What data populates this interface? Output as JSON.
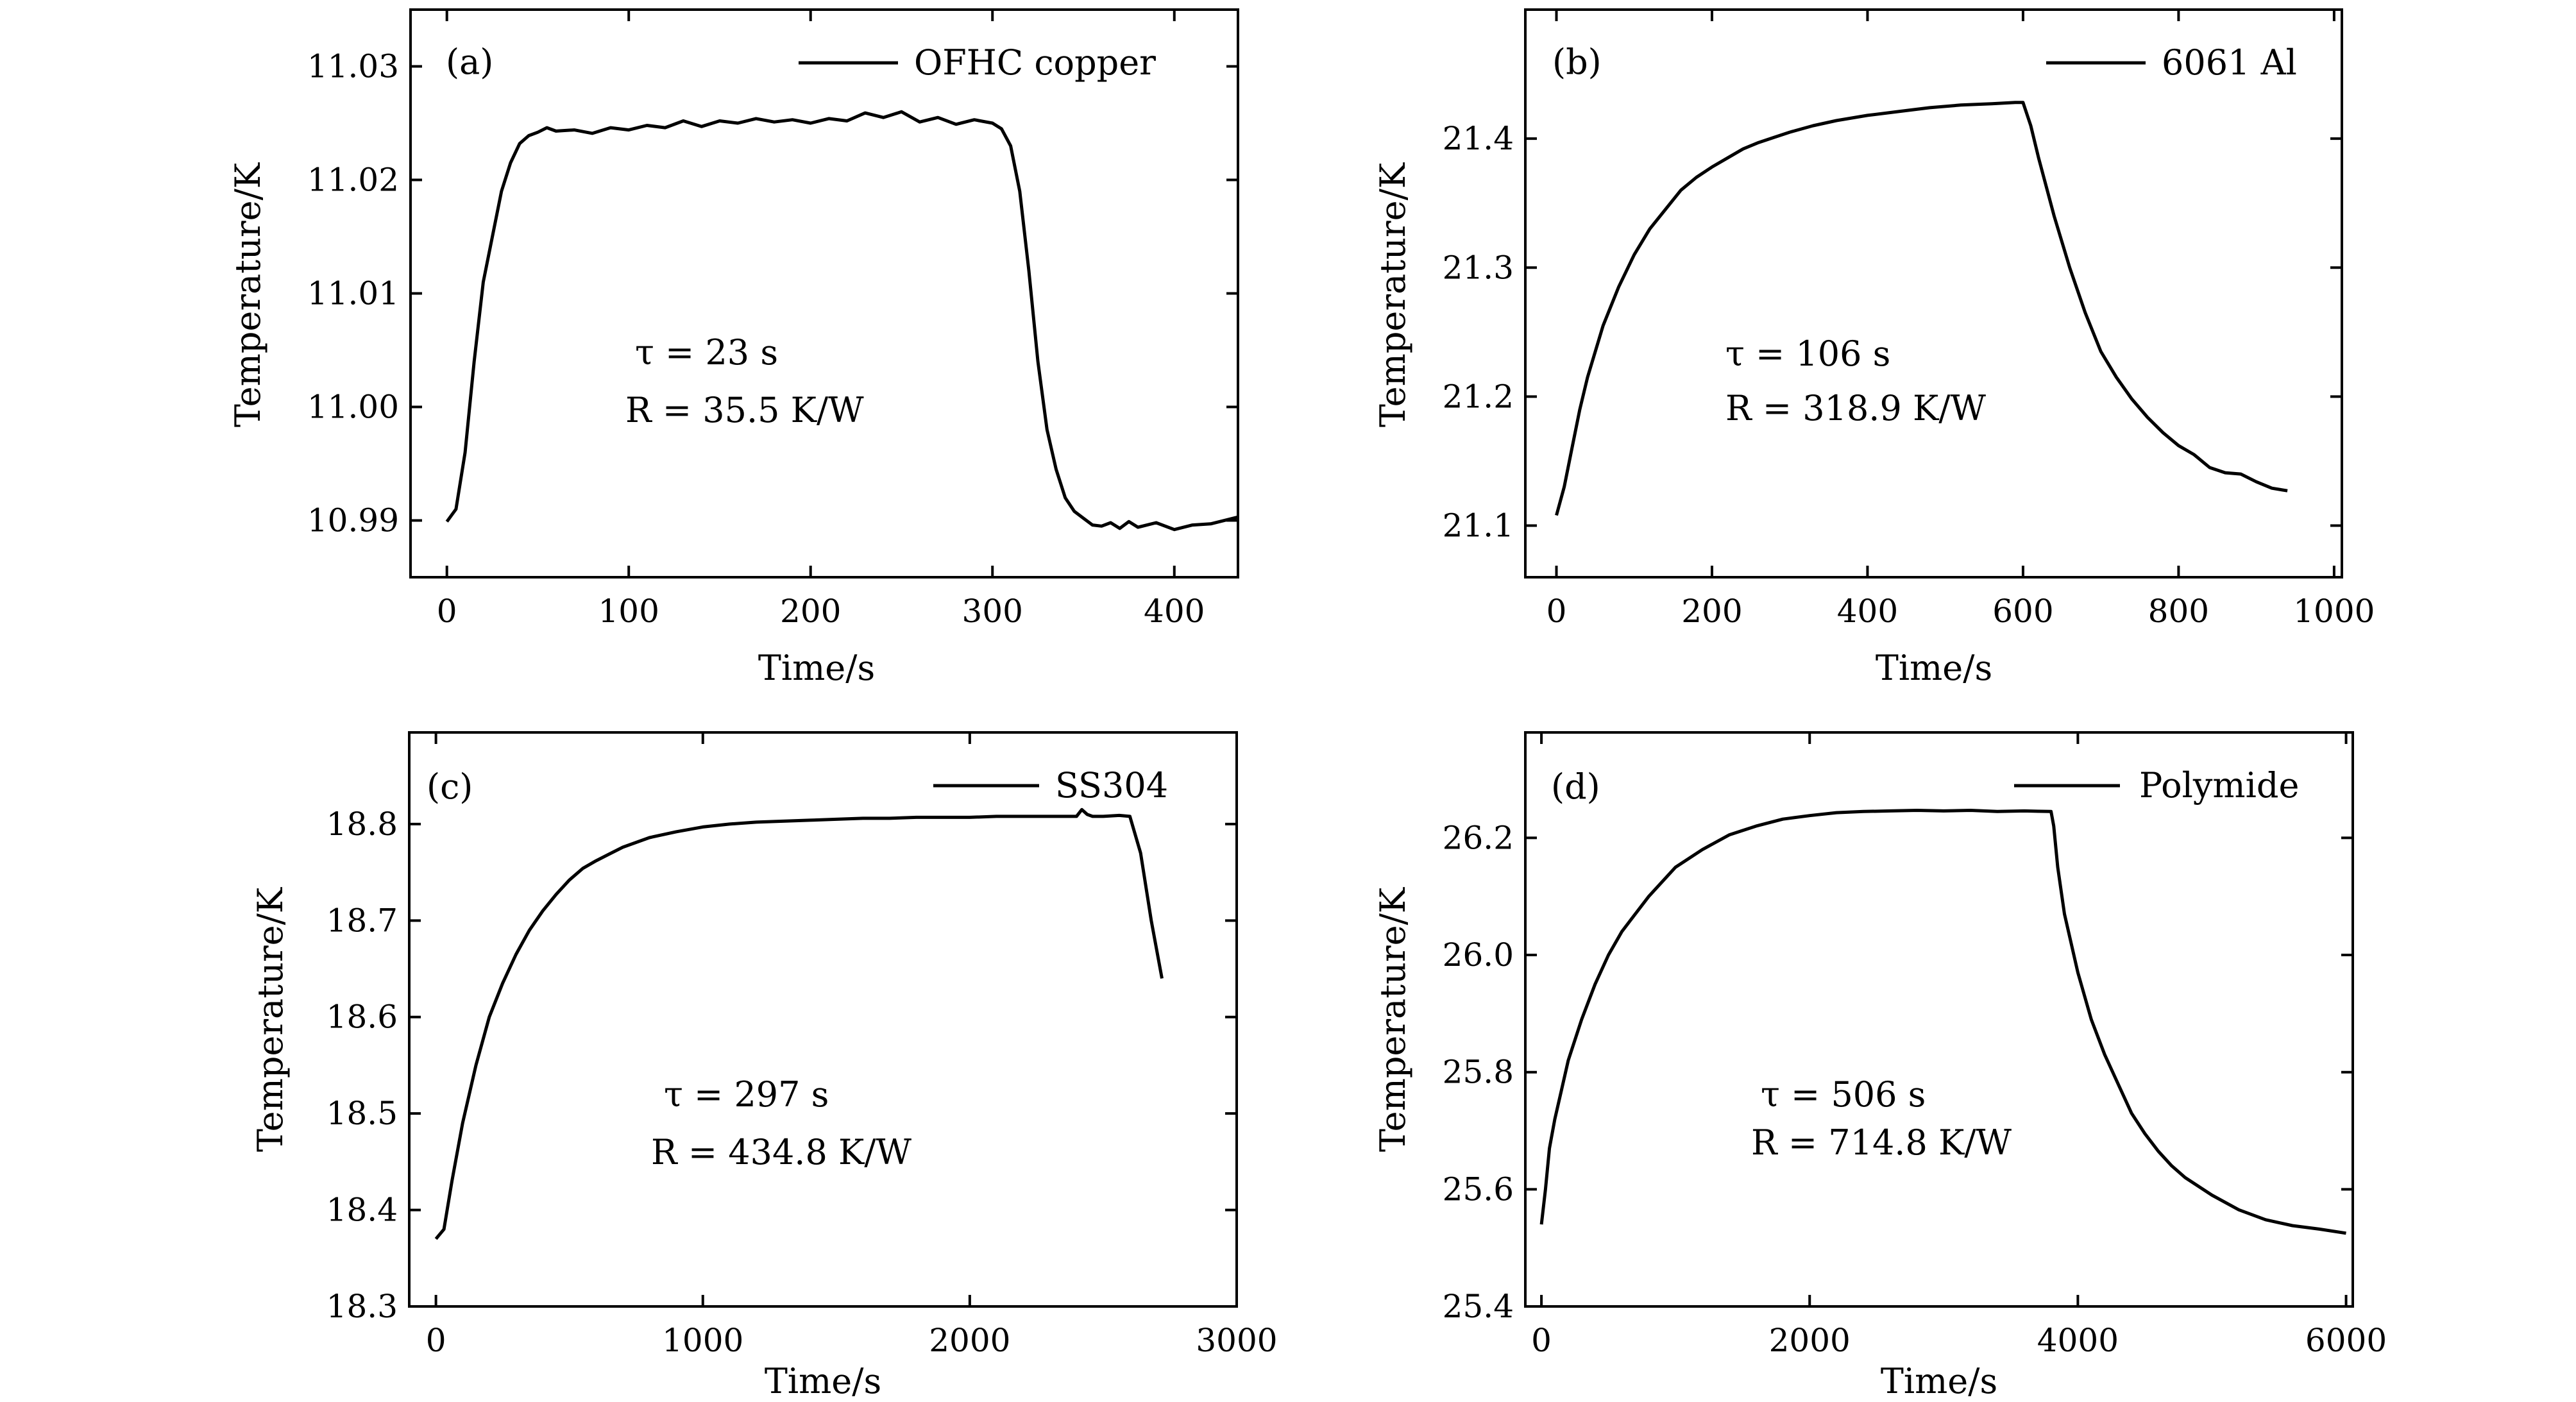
{
  "chart_data": [
    {
      "type": "line",
      "panel_label": "(a)",
      "xlabel": "Time/s",
      "ylabel": "Temperature/K",
      "xlim": [
        -20,
        435
      ],
      "ylim": [
        10.985,
        11.035
      ],
      "xticks": [
        0,
        100,
        200,
        300,
        400
      ],
      "xtick_labels": [
        "0",
        "100",
        "200",
        "300",
        "400"
      ],
      "yticks": [
        10.99,
        11.0,
        11.01,
        11.02,
        11.03
      ],
      "ytick_labels": [
        "10.99",
        "11.00",
        "11.01",
        "11.02",
        "11.03"
      ],
      "legend": "top-right",
      "grid": false,
      "annotations": [
        "τ = 23 s",
        "R = 35.5 K/W"
      ],
      "series": [
        {
          "name": "OFHC copper",
          "x": [
            0,
            5,
            10,
            15,
            20,
            25,
            30,
            35,
            40,
            45,
            50,
            55,
            60,
            70,
            80,
            90,
            100,
            110,
            120,
            130,
            140,
            150,
            160,
            170,
            180,
            190,
            200,
            210,
            220,
            230,
            240,
            250,
            260,
            270,
            280,
            290,
            300,
            305,
            310,
            315,
            320,
            325,
            330,
            335,
            340,
            345,
            350,
            355,
            360,
            365,
            370,
            375,
            380,
            390,
            400,
            410,
            420,
            435
          ],
          "y": [
            10.9899,
            10.991,
            10.996,
            11.004,
            11.011,
            11.015,
            11.019,
            11.0215,
            11.0232,
            11.0239,
            11.0242,
            11.0246,
            11.0243,
            11.0244,
            11.0241,
            11.0246,
            11.0244,
            11.0248,
            11.0246,
            11.0252,
            11.0247,
            11.0252,
            11.025,
            11.0254,
            11.0251,
            11.0253,
            11.025,
            11.0254,
            11.0252,
            11.0259,
            11.0255,
            11.026,
            11.0251,
            11.0255,
            11.0249,
            11.0253,
            11.025,
            11.0245,
            11.023,
            11.019,
            11.012,
            11.004,
            10.998,
            10.9945,
            10.992,
            10.9908,
            10.9902,
            10.9896,
            10.9895,
            10.9898,
            10.9893,
            10.9899,
            10.9894,
            10.9898,
            10.9892,
            10.9896,
            10.9897,
            10.9903
          ]
        }
      ]
    },
    {
      "type": "line",
      "panel_label": "(b)",
      "xlabel": "Time/s",
      "ylabel": "Temperature/K",
      "xlim": [
        -40,
        1010
      ],
      "ylim": [
        21.06,
        21.5
      ],
      "xticks": [
        0,
        200,
        400,
        600,
        800,
        1000
      ],
      "xtick_labels": [
        "0",
        "200",
        "400",
        "600",
        "800",
        "1000"
      ],
      "yticks": [
        21.1,
        21.2,
        21.3,
        21.4
      ],
      "ytick_labels": [
        "21.1",
        "21.2",
        "21.3",
        "21.4"
      ],
      "legend": "top-right",
      "grid": false,
      "annotations": [
        "τ = 106 s",
        "R = 318.9 K/W"
      ],
      "series": [
        {
          "name": "6061 Al",
          "x": [
            0,
            10,
            20,
            30,
            40,
            50,
            60,
            80,
            100,
            120,
            140,
            160,
            180,
            200,
            220,
            240,
            260,
            280,
            300,
            330,
            360,
            400,
            440,
            480,
            520,
            560,
            590,
            600,
            610,
            620,
            640,
            660,
            680,
            700,
            720,
            740,
            760,
            780,
            800,
            820,
            840,
            860,
            880,
            900,
            920,
            940
          ],
          "y": [
            21.108,
            21.13,
            21.16,
            21.19,
            21.215,
            21.235,
            21.255,
            21.285,
            21.31,
            21.33,
            21.345,
            21.36,
            21.37,
            21.378,
            21.385,
            21.392,
            21.397,
            21.401,
            21.405,
            21.41,
            21.414,
            21.418,
            21.421,
            21.424,
            21.426,
            21.427,
            21.428,
            21.428,
            21.41,
            21.385,
            21.34,
            21.3,
            21.265,
            21.235,
            21.215,
            21.198,
            21.184,
            21.172,
            21.162,
            21.155,
            21.145,
            21.141,
            21.14,
            21.134,
            21.129,
            21.127
          ]
        }
      ]
    },
    {
      "type": "line",
      "panel_label": "(c)",
      "xlabel": "Time/s",
      "ylabel": "Temperature/K",
      "xlim": [
        -100,
        3000
      ],
      "ylim": [
        18.3,
        18.895
      ],
      "xticks": [
        0,
        1000,
        2000,
        3000
      ],
      "xtick_labels": [
        "0",
        "1000",
        "2000",
        "3000"
      ],
      "yticks": [
        18.3,
        18.4,
        18.5,
        18.6,
        18.7,
        18.8
      ],
      "ytick_labels": [
        "18.3",
        "18.4",
        "18.5",
        "18.6",
        "18.7",
        "18.8"
      ],
      "legend": "top-right",
      "grid": false,
      "annotations": [
        "τ = 297 s",
        "R = 434.8 K/W"
      ],
      "series": [
        {
          "name": "SS304",
          "x": [
            0,
            30,
            60,
            100,
            150,
            200,
            250,
            300,
            350,
            400,
            450,
            500,
            550,
            600,
            650,
            700,
            800,
            900,
            1000,
            1100,
            1200,
            1300,
            1400,
            1500,
            1600,
            1700,
            1800,
            1900,
            2000,
            2100,
            2200,
            2300,
            2400,
            2420,
            2440,
            2460,
            2500,
            2560,
            2600,
            2640,
            2680,
            2720
          ],
          "y": [
            18.37,
            18.38,
            18.43,
            18.49,
            18.55,
            18.6,
            18.635,
            18.665,
            18.69,
            18.71,
            18.727,
            18.742,
            18.754,
            18.762,
            18.769,
            18.776,
            18.786,
            18.792,
            18.797,
            18.8,
            18.802,
            18.803,
            18.804,
            18.805,
            18.806,
            18.806,
            18.807,
            18.807,
            18.807,
            18.808,
            18.808,
            18.808,
            18.808,
            18.815,
            18.81,
            18.808,
            18.808,
            18.809,
            18.808,
            18.77,
            18.7,
            18.64
          ]
        }
      ]
    },
    {
      "type": "line",
      "panel_label": "(d)",
      "xlabel": "Time/s",
      "ylabel": "Temperature/K",
      "xlim": [
        -120,
        6050
      ],
      "ylim": [
        25.4,
        26.38
      ],
      "xticks": [
        0,
        2000,
        4000,
        6000
      ],
      "xtick_labels": [
        "0",
        "2000",
        "4000",
        "6000"
      ],
      "yticks": [
        25.4,
        25.6,
        25.8,
        26.0,
        26.2
      ],
      "ytick_labels": [
        "25.4",
        "25.6",
        "25.8",
        "26.0",
        "26.2"
      ],
      "legend": "top-right",
      "grid": false,
      "annotations": [
        "τ = 506 s",
        "R = 714.8 K/W"
      ],
      "series": [
        {
          "name": "Polymide",
          "x": [
            0,
            30,
            60,
            100,
            150,
            200,
            300,
            400,
            500,
            600,
            700,
            800,
            1000,
            1200,
            1400,
            1600,
            1800,
            2000,
            2200,
            2400,
            2600,
            2800,
            3000,
            3200,
            3400,
            3600,
            3800,
            3820,
            3850,
            3900,
            4000,
            4100,
            4200,
            4300,
            4400,
            4500,
            4600,
            4700,
            4800,
            5000,
            5200,
            5400,
            5600,
            5800,
            6000
          ],
          "y": [
            25.54,
            25.6,
            25.67,
            25.72,
            25.77,
            25.82,
            25.89,
            25.95,
            26.0,
            26.04,
            26.07,
            26.1,
            26.15,
            26.18,
            26.205,
            26.22,
            26.232,
            26.238,
            26.243,
            26.245,
            26.246,
            26.247,
            26.246,
            26.247,
            26.245,
            26.246,
            26.245,
            26.22,
            26.15,
            26.07,
            25.97,
            25.89,
            25.83,
            25.78,
            25.73,
            25.695,
            25.665,
            25.64,
            25.62,
            25.59,
            25.565,
            25.548,
            25.538,
            25.532,
            25.525
          ]
        }
      ]
    }
  ]
}
